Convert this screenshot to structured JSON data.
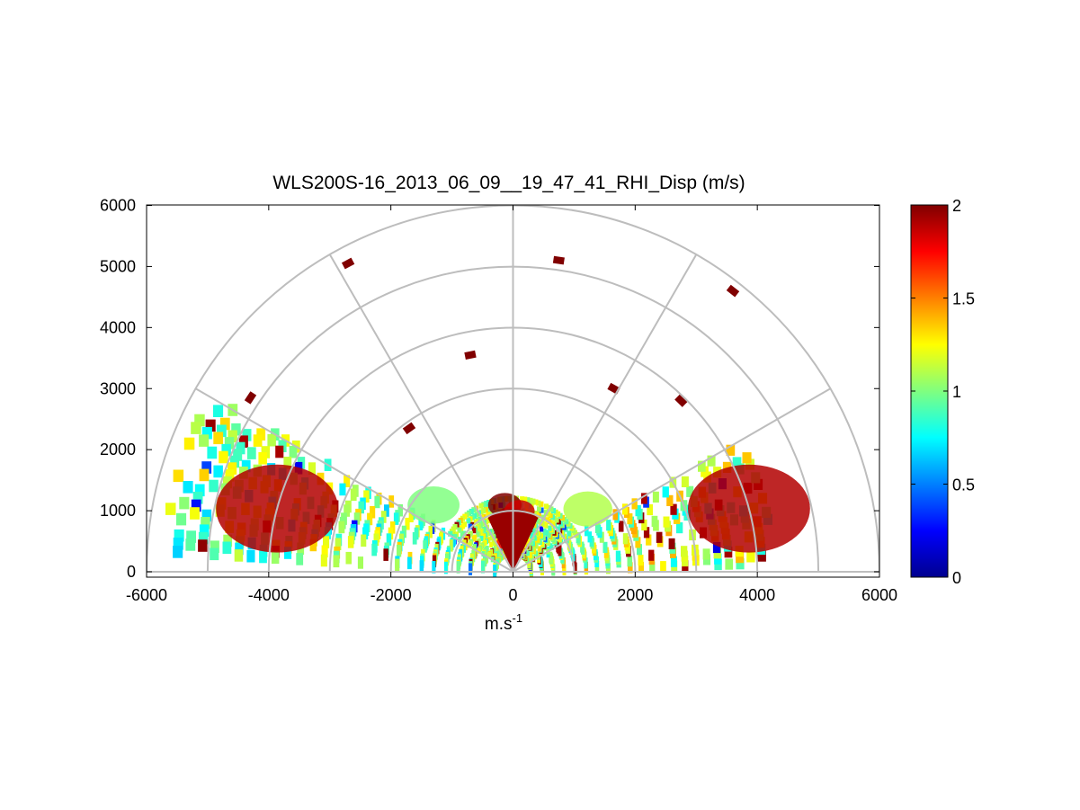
{
  "chart_data": {
    "type": "heatmap",
    "subtype": "polar-rhi-scan",
    "title": "WLS200S-16_2013_06_09__19_47_41_RHI_Disp (m/s)",
    "xlabel": "m.s",
    "xlabel_superscript": "-1",
    "ylabel": "",
    "xlim": [
      -6000,
      6000
    ],
    "ylim": [
      0,
      6000
    ],
    "xticks": [
      -6000,
      -4000,
      -2000,
      0,
      2000,
      4000,
      6000
    ],
    "xtick_labels": [
      "-6000",
      "-4000",
      "-2000",
      "0",
      "2000",
      "4000",
      "6000"
    ],
    "yticks": [
      0,
      1000,
      2000,
      3000,
      4000,
      5000,
      6000
    ],
    "ytick_labels": [
      "0",
      "1000",
      "2000",
      "3000",
      "4000",
      "5000",
      "6000"
    ],
    "polar_grid": {
      "range_rings": [
        1000,
        2000,
        3000,
        4000,
        5000,
        6000
      ],
      "spokes_deg": [
        0,
        30,
        60,
        90,
        120,
        150,
        180
      ]
    },
    "colorbar": {
      "colormap": "jet",
      "min": 0,
      "max": 2,
      "ticks": [
        0,
        0.5,
        1,
        1.5,
        2
      ],
      "tick_labels": [
        "0",
        "0.5",
        "1",
        "1.5",
        "2"
      ]
    },
    "scan": {
      "elevation_min_deg": 0,
      "elevation_max_deg": 180,
      "cells": [
        {
          "az": 97,
          "r": 1100,
          "v": 2.0
        },
        {
          "az": 93,
          "r": 900,
          "v": 1.95
        },
        {
          "az": 88,
          "r": 800,
          "v": 1.9
        },
        {
          "az": 84,
          "r": 1000,
          "v": 1.85
        },
        {
          "az": 100,
          "r": 700,
          "v": 1.85
        },
        {
          "az": 80,
          "r": 600,
          "v": 1.7
        },
        {
          "az": 104,
          "r": 500,
          "v": 1.75
        },
        {
          "az": 40,
          "r": 1600,
          "v": 1.1
        },
        {
          "az": 140,
          "r": 1700,
          "v": 1.0
        },
        {
          "az": 15,
          "r": 4000,
          "v": 1.9
        },
        {
          "az": 165,
          "r": 4000,
          "v": 1.9
        }
      ],
      "isolated_points": [
        {
          "x": -2700,
          "y": 5050,
          "v": 2.0
        },
        {
          "x": 750,
          "y": 5100,
          "v": 2.0
        },
        {
          "x": 3600,
          "y": 4600,
          "v": 2.0
        },
        {
          "x": -700,
          "y": 3550,
          "v": 2.0
        },
        {
          "x": -4300,
          "y": 2850,
          "v": 2.0
        },
        {
          "x": 1650,
          "y": 3000,
          "v": 2.0
        },
        {
          "x": 2750,
          "y": 2800,
          "v": 2.0
        },
        {
          "x": -1700,
          "y": 2350,
          "v": 2.0
        }
      ]
    }
  }
}
